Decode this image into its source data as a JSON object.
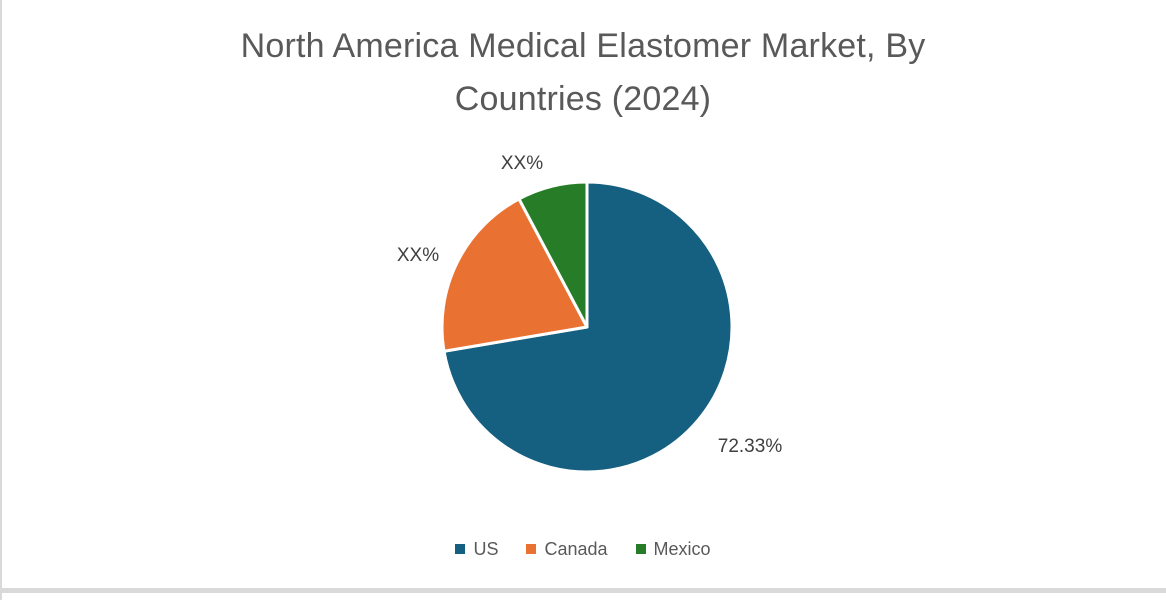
{
  "chart": {
    "title_lines": [
      "North America Medical Elastomer Market, By",
      "Countries (2024)"
    ]
  },
  "colors": {
    "us": "#155f80",
    "canada": "#e97132",
    "mexico": "#277d27",
    "title_text": "#595959",
    "label_text": "#404040",
    "card_edge": "#d9d9d9"
  },
  "chart_data": {
    "type": "pie",
    "title": "North America Medical Elastomer Market, By Countries (2024)",
    "series": [
      {
        "name": "US",
        "value": 72.33,
        "display_label": "72.33%",
        "color": "#155f80"
      },
      {
        "name": "Canada",
        "value": 19.9,
        "display_label": "XX%",
        "color": "#e97132"
      },
      {
        "name": "Mexico",
        "value": 7.77,
        "display_label": "XX%",
        "color": "#277d27"
      }
    ],
    "start_angle_deg": 0,
    "direction": "clockwise",
    "legend_position": "bottom",
    "legend_labels": [
      "US",
      "Canada",
      "Mexico"
    ],
    "slice_border_color": "#ffffff"
  }
}
